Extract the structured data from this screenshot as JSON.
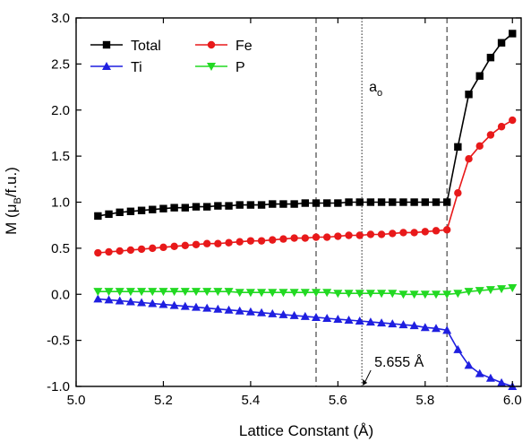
{
  "chart_data": {
    "type": "line",
    "title": "",
    "xlabel": "Lattice Constant (Å)",
    "ylabel": {
      "main": "M (μ",
      "sub": "B",
      "tail": "/f.u.)"
    },
    "xlim": [
      5.0,
      6.02
    ],
    "ylim": [
      -1.0,
      3.0
    ],
    "xticks": [
      5.0,
      5.2,
      5.4,
      5.6,
      5.8,
      6.0
    ],
    "xtick_labels": [
      "5.0",
      "5.2",
      "5.4",
      "5.6",
      "5.8",
      "6.0"
    ],
    "yticks": [
      -1.0,
      -0.5,
      0.0,
      0.5,
      1.0,
      1.5,
      2.0,
      2.5,
      3.0
    ],
    "ytick_labels": [
      "-1.0",
      "-0.5",
      "0.0",
      "0.5",
      "1.0",
      "1.5",
      "2.0",
      "2.5",
      "3.0"
    ],
    "grid": false,
    "legend_position": "top-left",
    "vlines": [
      {
        "x": 5.55,
        "style": "dashed"
      },
      {
        "x": 5.655,
        "style": "dotted"
      },
      {
        "x": 5.85,
        "style": "dashed"
      }
    ],
    "annotations": {
      "a0": {
        "main": "a",
        "sub": "o",
        "x": 5.655,
        "y": 2.25
      },
      "arrow_label": {
        "text": "5.655 Å",
        "x": 5.655,
        "y": -1.0
      }
    },
    "x": [
      5.05,
      5.075,
      5.1,
      5.125,
      5.15,
      5.175,
      5.2,
      5.225,
      5.25,
      5.275,
      5.3,
      5.325,
      5.35,
      5.375,
      5.4,
      5.425,
      5.45,
      5.475,
      5.5,
      5.525,
      5.55,
      5.575,
      5.6,
      5.625,
      5.65,
      5.675,
      5.7,
      5.725,
      5.75,
      5.775,
      5.8,
      5.825,
      5.85,
      5.875,
      5.9,
      5.925,
      5.95,
      5.975,
      6.0
    ],
    "series": [
      {
        "name": "Total",
        "color": "#000000",
        "marker": "square",
        "values": [
          0.85,
          0.87,
          0.89,
          0.9,
          0.91,
          0.92,
          0.93,
          0.94,
          0.94,
          0.95,
          0.95,
          0.96,
          0.96,
          0.97,
          0.97,
          0.97,
          0.98,
          0.98,
          0.98,
          0.99,
          0.99,
          0.99,
          0.99,
          1.0,
          1.0,
          1.0,
          1.0,
          1.0,
          1.0,
          1.0,
          1.0,
          1.0,
          1.0,
          1.6,
          2.17,
          2.37,
          2.57,
          2.73,
          2.83
        ]
      },
      {
        "name": "Fe",
        "color": "#e8191a",
        "marker": "circle",
        "values": [
          0.45,
          0.46,
          0.47,
          0.48,
          0.49,
          0.5,
          0.51,
          0.52,
          0.53,
          0.54,
          0.55,
          0.55,
          0.56,
          0.57,
          0.58,
          0.58,
          0.59,
          0.6,
          0.61,
          0.61,
          0.62,
          0.62,
          0.63,
          0.64,
          0.64,
          0.65,
          0.65,
          0.66,
          0.67,
          0.67,
          0.68,
          0.69,
          0.7,
          1.1,
          1.47,
          1.61,
          1.73,
          1.82,
          1.89
        ]
      },
      {
        "name": "Ti",
        "color": "#1f1fe0",
        "marker": "triangle-up",
        "values": [
          -0.05,
          -0.06,
          -0.07,
          -0.08,
          -0.09,
          -0.1,
          -0.11,
          -0.12,
          -0.13,
          -0.14,
          -0.15,
          -0.16,
          -0.17,
          -0.18,
          -0.19,
          -0.2,
          -0.21,
          -0.22,
          -0.23,
          -0.24,
          -0.25,
          -0.26,
          -0.27,
          -0.28,
          -0.29,
          -0.3,
          -0.31,
          -0.32,
          -0.33,
          -0.34,
          -0.36,
          -0.37,
          -0.39,
          -0.6,
          -0.77,
          -0.86,
          -0.91,
          -0.96,
          -1.0
        ]
      },
      {
        "name": "P",
        "color": "#22d922",
        "marker": "triangle-down",
        "values": [
          0.03,
          0.03,
          0.03,
          0.03,
          0.03,
          0.03,
          0.03,
          0.03,
          0.03,
          0.03,
          0.03,
          0.03,
          0.03,
          0.02,
          0.02,
          0.02,
          0.02,
          0.02,
          0.02,
          0.02,
          0.02,
          0.02,
          0.01,
          0.01,
          0.01,
          0.01,
          0.01,
          0.01,
          0.0,
          0.0,
          0.0,
          0.0,
          0.0,
          0.01,
          0.03,
          0.04,
          0.05,
          0.06,
          0.07
        ]
      }
    ]
  }
}
